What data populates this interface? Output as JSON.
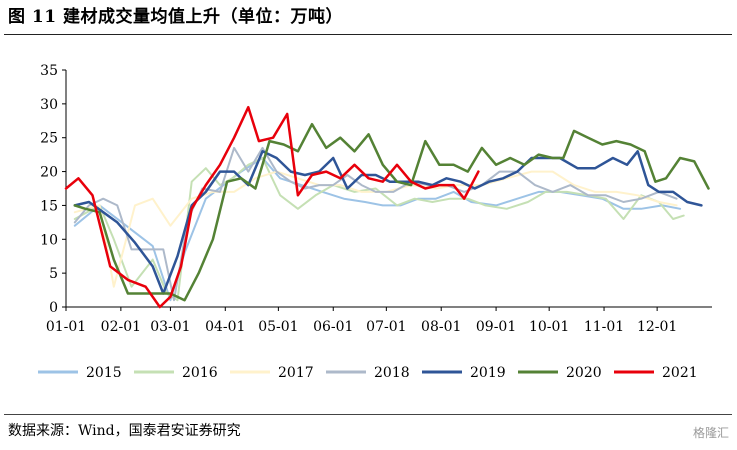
{
  "header": {
    "title": "图 11  建材成交量均值上升（单位：万吨）"
  },
  "footer": {
    "source": "数据来源：Wind，国泰君安证券研究",
    "watermark": "格隆汇"
  },
  "chart_data": {
    "type": "line",
    "title": "建材成交量均值上升",
    "unit": "万吨",
    "xlabel": "",
    "ylabel": "",
    "ylim": [
      0,
      35
    ],
    "yticks": [
      0,
      5,
      10,
      15,
      20,
      25,
      30,
      35
    ],
    "xlim": [
      1,
      366
    ],
    "xticks": [
      {
        "label": "01-01",
        "day": 1
      },
      {
        "label": "02-01",
        "day": 32
      },
      {
        "label": "03-01",
        "day": 60
      },
      {
        "label": "04-01",
        "day": 91
      },
      {
        "label": "05-01",
        "day": 121
      },
      {
        "label": "06-01",
        "day": 152
      },
      {
        "label": "07-01",
        "day": 182
      },
      {
        "label": "08-01",
        "day": 213
      },
      {
        "label": "09-01",
        "day": 244
      },
      {
        "label": "10-01",
        "day": 274
      },
      {
        "label": "11-01",
        "day": 305
      },
      {
        "label": "12-01",
        "day": 335
      }
    ],
    "grid": false,
    "legend_position": "bottom",
    "series": [
      {
        "name": "2015",
        "color": "#9DC3E6",
        "width": 2,
        "x": [
          6,
          20,
          35,
          50,
          60,
          68,
          80,
          90,
          100,
          112,
          122,
          134,
          146,
          158,
          170,
          180,
          190,
          200,
          210,
          220,
          230,
          244,
          256,
          268,
          280,
          292,
          304,
          316,
          326,
          338,
          348
        ],
        "y": [
          12,
          15,
          12,
          9,
          1,
          8,
          16,
          18,
          20,
          22,
          19,
          18,
          17,
          16,
          15.5,
          15,
          15,
          16,
          16,
          17,
          15.5,
          15,
          16,
          17,
          17,
          16.5,
          16,
          14.5,
          14.5,
          15,
          14.5
        ]
      },
      {
        "name": "2016",
        "color": "#C5E0B4",
        "width": 2,
        "x": [
          6,
          20,
          28,
          38,
          50,
          58,
          64,
          72,
          80,
          88,
          95,
          104,
          112,
          122,
          132,
          142,
          152,
          164,
          176,
          188,
          198,
          208,
          218,
          228,
          238,
          250,
          262,
          272,
          284,
          296,
          306,
          316,
          326,
          336,
          344,
          350
        ],
        "y": [
          13,
          15,
          10,
          3,
          7,
          2,
          1,
          18.5,
          20.5,
          18,
          19,
          21,
          22,
          16.5,
          14.5,
          16.5,
          18,
          17,
          17.5,
          15,
          16,
          15.5,
          16,
          16,
          15,
          14.5,
          15.5,
          17,
          17,
          16.5,
          16,
          13,
          16.5,
          15.5,
          13,
          13.5
        ]
      },
      {
        "name": "2017",
        "color": "#FFF2CC",
        "width": 2,
        "x": [
          6,
          20,
          28,
          40,
          50,
          60,
          72,
          84,
          96,
          108,
          120,
          132,
          144,
          156,
          168,
          182,
          196,
          210,
          222,
          236,
          250,
          264,
          276,
          288,
          300,
          312,
          324,
          336,
          346
        ],
        "y": [
          14,
          15,
          3,
          15,
          16,
          12,
          16,
          17,
          17,
          19,
          20,
          19,
          18,
          18,
          17,
          17,
          18,
          17.5,
          18,
          18,
          19,
          20,
          20,
          18,
          17,
          17,
          16.5,
          15.5,
          15
        ]
      },
      {
        "name": "2018",
        "color": "#ADB9CA",
        "width": 2,
        "x": [
          6,
          14,
          22,
          30,
          38,
          48,
          56,
          62,
          70,
          78,
          88,
          96,
          104,
          112,
          120,
          128,
          136,
          144,
          152,
          160,
          168,
          176,
          186,
          196,
          206,
          216,
          226,
          236,
          246,
          256,
          266,
          276,
          286,
          296,
          306,
          316,
          326,
          336,
          346
        ],
        "y": [
          12.5,
          15,
          16,
          15,
          8.5,
          8.5,
          8.5,
          1,
          13,
          17.5,
          17,
          23.5,
          20,
          23.5,
          20,
          18.5,
          17.5,
          18,
          18,
          19.5,
          18,
          17,
          17,
          18.5,
          18,
          18,
          17,
          18,
          20,
          20,
          18,
          17,
          18,
          16.5,
          16.5,
          15.5,
          16,
          17,
          16
        ]
      },
      {
        "name": "2019",
        "color": "#2F5597",
        "width": 2.5,
        "x": [
          6,
          14,
          22,
          30,
          40,
          50,
          56,
          64,
          72,
          80,
          88,
          96,
          104,
          112,
          120,
          128,
          136,
          144,
          152,
          160,
          168,
          176,
          184,
          192,
          200,
          208,
          216,
          224,
          232,
          240,
          248,
          256,
          264,
          272,
          280,
          290,
          300,
          310,
          318,
          324,
          330,
          336,
          344,
          352,
          360
        ],
        "y": [
          15,
          15.5,
          14,
          12.5,
          9.5,
          6,
          2,
          7.5,
          15,
          17,
          20,
          20,
          18,
          23,
          22,
          20,
          19.5,
          20,
          22,
          17.5,
          19.5,
          19.5,
          18.5,
          18.5,
          18.5,
          18,
          19,
          18.5,
          17.5,
          18.5,
          19,
          20,
          22,
          22,
          22,
          20.5,
          20.5,
          22,
          21,
          23,
          18,
          17,
          17,
          15.5,
          15
        ]
      },
      {
        "name": "2020",
        "color": "#548235",
        "width": 2.5,
        "x": [
          6,
          12,
          20,
          28,
          36,
          44,
          52,
          60,
          68,
          76,
          84,
          92,
          100,
          108,
          116,
          124,
          132,
          140,
          148,
          156,
          164,
          172,
          180,
          188,
          196,
          204,
          212,
          220,
          228,
          236,
          244,
          252,
          260,
          268,
          276,
          282,
          288,
          296,
          304,
          312,
          320,
          328,
          334,
          340,
          348,
          356,
          364
        ],
        "y": [
          15,
          14.5,
          14,
          7,
          2,
          2,
          2,
          2,
          1,
          5,
          10,
          18.5,
          19,
          17.5,
          24.5,
          24,
          23,
          27,
          23.5,
          25,
          23,
          25.5,
          21,
          18.5,
          18,
          24.5,
          21,
          21,
          20,
          23.5,
          21,
          22,
          21,
          22.5,
          22,
          22,
          26,
          25,
          24,
          24.5,
          24,
          23,
          18.5,
          19,
          22,
          21.5,
          17.5
        ]
      },
      {
        "name": "2021",
        "color": "#E8000B",
        "width": 2.5,
        "x": [
          1,
          8,
          16,
          26,
          36,
          46,
          54,
          60,
          66,
          72,
          80,
          88,
          96,
          104,
          110,
          118,
          126,
          132,
          140,
          148,
          156,
          164,
          172,
          180,
          188,
          196,
          204,
          212,
          220,
          226,
          234
        ],
        "y": [
          17.5,
          19,
          16.5,
          6,
          4,
          3,
          0,
          1.5,
          6,
          14.5,
          18,
          21,
          25,
          29.5,
          24.5,
          25,
          28.5,
          16.5,
          19.5,
          20,
          19,
          21,
          19,
          18.5,
          21,
          18.5,
          17.5,
          18,
          18,
          16,
          20
        ]
      }
    ]
  }
}
